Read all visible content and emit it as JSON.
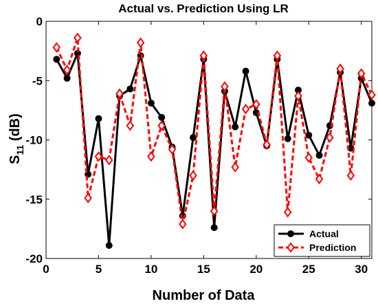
{
  "chart_data": {
    "type": "line",
    "title": "Actual vs. Prediction Using LR",
    "xlabel": "Number of Data",
    "ylabel": "S11 (dB)",
    "ylabel_main": "S",
    "ylabel_sub": "11",
    "ylabel_suffix": " (dB)",
    "xlim": [
      0,
      31
    ],
    "ylim": [
      -20,
      0
    ],
    "xticks": [
      0,
      5,
      10,
      15,
      20,
      25,
      30
    ],
    "yticks": [
      0,
      -5,
      -10,
      -15,
      -20
    ],
    "grid": false,
    "legend_position": "bottom-right",
    "x": [
      1,
      2,
      3,
      4,
      5,
      6,
      7,
      8,
      9,
      10,
      11,
      12,
      13,
      14,
      15,
      16,
      17,
      18,
      19,
      20,
      21,
      22,
      23,
      24,
      25,
      26,
      27,
      28,
      29,
      30,
      31
    ],
    "series": [
      {
        "name": "Actual",
        "color": "#000000",
        "line": "solid",
        "marker": "circle",
        "values": [
          -3.2,
          -4.8,
          -2.7,
          -12.9,
          -8.2,
          -18.9,
          -6.3,
          -5.7,
          -2.9,
          -6.9,
          -8.1,
          -10.6,
          -16.4,
          -9.8,
          -3.2,
          -17.4,
          -5.9,
          -8.9,
          -4.2,
          -7.7,
          -10.5,
          -3.2,
          -9.9,
          -5.8,
          -9.6,
          -11.3,
          -8.8,
          -4.3,
          -10.7,
          -4.8,
          -6.9
        ]
      },
      {
        "name": "Prediction",
        "color": "#ff0000",
        "line": "dashed",
        "marker": "diamond",
        "values": [
          -2.2,
          -4.1,
          -1.4,
          -14.9,
          -11.4,
          -11.7,
          -6.1,
          -8.8,
          -1.8,
          -11.4,
          -8.8,
          -10.8,
          -17.1,
          -13.0,
          -2.9,
          -16.0,
          -5.5,
          -12.3,
          -7.4,
          -7.0,
          -10.4,
          -2.9,
          -16.1,
          -6.3,
          -11.5,
          -13.3,
          -9.8,
          -4.0,
          -13.0,
          -4.4,
          -6.2
        ]
      }
    ]
  }
}
